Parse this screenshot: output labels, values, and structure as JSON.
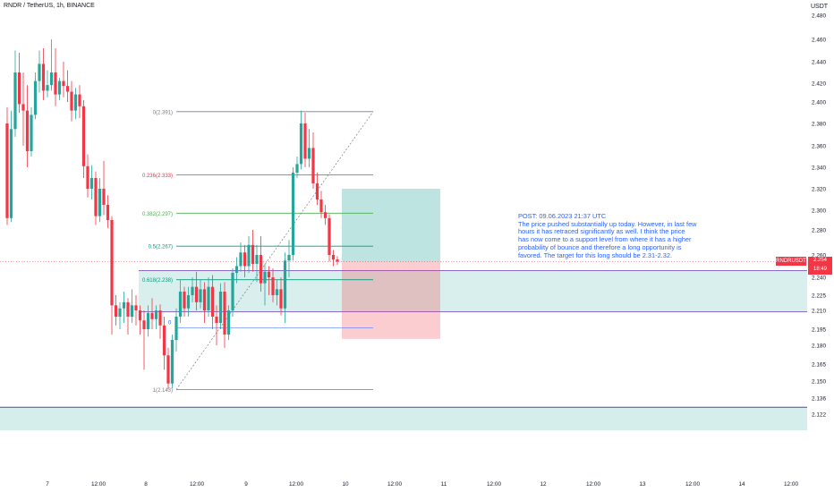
{
  "header": {
    "title": "RNDR / TetherUS, 1h, BINANCE",
    "unit": "USDT"
  },
  "note": {
    "heading": "POST: 09.06.2023 21:37 UTC",
    "body": "The price pushed substantially up today. However, in last few hours it has retraced significantly as well. I think the price has now come to a support level from where it has a higher probability of bounce and therefore a long opportunity is favored. The target for this long should be 2.31-2.32."
  },
  "price_marker": {
    "ticker": "RNDRUSDT",
    "price": "2.254",
    "countdown": "18:49"
  },
  "colors": {
    "up": "#26a69a",
    "down": "#f23645",
    "fib_line": "#787b86",
    "zone_fill": "#b2dfdb",
    "zone_border": "#673ab7",
    "note_text": "#2962ff"
  },
  "chart_data": {
    "type": "candlestick",
    "symbol": "RNDR / TetherUS",
    "timeframe": "1h",
    "exchange": "BINANCE",
    "y_axis": {
      "ticks": [
        "2.480",
        "2.460",
        "2.440",
        "2.420",
        "2.400",
        "2.380",
        "2.360",
        "2.340",
        "2.320",
        "2.300",
        "2.280",
        "2.260",
        "2.240",
        "2.225",
        "2.210",
        "2.195",
        "2.180",
        "2.165",
        "2.150",
        "2.136",
        "2.122"
      ],
      "tick_values": [
        2.48,
        2.46,
        2.44,
        2.42,
        2.4,
        2.38,
        2.36,
        2.34,
        2.32,
        2.3,
        2.28,
        2.26,
        2.24,
        2.225,
        2.21,
        2.195,
        2.18,
        2.165,
        2.15,
        2.136,
        2.122
      ]
    },
    "x_axis": {
      "ticks": [
        "7",
        "12:00",
        "8",
        "12:00",
        "9",
        "12:00",
        "10",
        "12:00",
        "11",
        "12:00",
        "12",
        "12:00",
        "13",
        "12:00",
        "14",
        "12:00"
      ]
    },
    "fib_levels": [
      {
        "label": "0(2.391)",
        "value": 2.391,
        "color": "#787b86"
      },
      {
        "label": "0.236(2.333)",
        "value": 2.333,
        "color": "#f23645"
      },
      {
        "label": "0.382(2.297)",
        "value": 2.297,
        "color": "#4caf50"
      },
      {
        "label": "0.5(2.267)",
        "value": 2.267,
        "color": "#089981"
      },
      {
        "label": "0.618(2.238)",
        "value": 2.238,
        "color": "#089981"
      },
      {
        "label": "1(2.143)",
        "value": 2.143,
        "color": "#787b86"
      }
    ],
    "fib_marker_label": "0",
    "position": {
      "side": "long",
      "entry": 2.254,
      "target_zone": [
        2.31,
        2.32
      ],
      "stop": 2.186
    },
    "support_zone": [
      2.209,
      2.246
    ],
    "lower_zone": [
      2.108,
      2.128
    ],
    "current_price": 2.254,
    "candles": [
      {
        "o": 2.38,
        "h": 2.395,
        "c": 2.292,
        "l": 2.285
      },
      {
        "o": 2.292,
        "h": 2.392,
        "c": 2.375,
        "l": 2.288
      },
      {
        "o": 2.375,
        "h": 2.45,
        "c": 2.43,
        "l": 2.368
      },
      {
        "o": 2.43,
        "h": 2.448,
        "c": 2.398,
        "l": 2.39
      },
      {
        "o": 2.398,
        "h": 2.43,
        "c": 2.392,
        "l": 2.36
      },
      {
        "o": 2.392,
        "h": 2.418,
        "c": 2.355,
        "l": 2.34
      },
      {
        "o": 2.355,
        "h": 2.395,
        "c": 2.388,
        "l": 2.35
      },
      {
        "o": 2.388,
        "h": 2.43,
        "c": 2.422,
        "l": 2.384
      },
      {
        "o": 2.422,
        "h": 2.45,
        "c": 2.438,
        "l": 2.41
      },
      {
        "o": 2.438,
        "h": 2.452,
        "c": 2.412,
        "l": 2.402
      },
      {
        "o": 2.412,
        "h": 2.432,
        "c": 2.418,
        "l": 2.405
      },
      {
        "o": 2.418,
        "h": 2.46,
        "c": 2.43,
        "l": 2.412
      },
      {
        "o": 2.43,
        "h": 2.452,
        "c": 2.408,
        "l": 2.396
      },
      {
        "o": 2.408,
        "h": 2.425,
        "c": 2.422,
        "l": 2.402
      },
      {
        "o": 2.422,
        "h": 2.44,
        "c": 2.417,
        "l": 2.405
      },
      {
        "o": 2.417,
        "h": 2.432,
        "c": 2.411,
        "l": 2.4
      },
      {
        "o": 2.411,
        "h": 2.422,
        "c": 2.392,
        "l": 2.382
      },
      {
        "o": 2.392,
        "h": 2.415,
        "c": 2.408,
        "l": 2.384
      },
      {
        "o": 2.408,
        "h": 2.418,
        "c": 2.396,
        "l": 2.385
      },
      {
        "o": 2.396,
        "h": 2.402,
        "c": 2.341,
        "l": 2.33
      },
      {
        "o": 2.341,
        "h": 2.352,
        "c": 2.32,
        "l": 2.312
      },
      {
        "o": 2.32,
        "h": 2.342,
        "c": 2.33,
        "l": 2.31
      },
      {
        "o": 2.33,
        "h": 2.336,
        "c": 2.294,
        "l": 2.285
      },
      {
        "o": 2.294,
        "h": 2.33,
        "c": 2.32,
        "l": 2.288
      },
      {
        "o": 2.32,
        "h": 2.346,
        "c": 2.305,
        "l": 2.295
      },
      {
        "o": 2.305,
        "h": 2.314,
        "c": 2.29,
        "l": 2.282
      },
      {
        "o": 2.29,
        "h": 2.294,
        "c": 2.215,
        "l": 2.19
      },
      {
        "o": 2.215,
        "h": 2.225,
        "c": 2.205,
        "l": 2.198
      },
      {
        "o": 2.205,
        "h": 2.218,
        "c": 2.212,
        "l": 2.195
      },
      {
        "o": 2.212,
        "h": 2.228,
        "c": 2.218,
        "l": 2.2
      },
      {
        "o": 2.218,
        "h": 2.222,
        "c": 2.205,
        "l": 2.19
      },
      {
        "o": 2.205,
        "h": 2.23,
        "c": 2.215,
        "l": 2.2
      },
      {
        "o": 2.215,
        "h": 2.225,
        "c": 2.21,
        "l": 2.198
      },
      {
        "o": 2.21,
        "h": 2.215,
        "c": 2.202,
        "l": 2.19
      },
      {
        "o": 2.202,
        "h": 2.21,
        "c": 2.195,
        "l": 2.16
      },
      {
        "o": 2.195,
        "h": 2.215,
        "c": 2.208,
        "l": 2.188
      },
      {
        "o": 2.208,
        "h": 2.222,
        "c": 2.203,
        "l": 2.195
      },
      {
        "o": 2.203,
        "h": 2.215,
        "c": 2.21,
        "l": 2.195
      },
      {
        "o": 2.21,
        "h": 2.216,
        "c": 2.198,
        "l": 2.186
      },
      {
        "o": 2.198,
        "h": 2.205,
        "c": 2.172,
        "l": 2.16
      },
      {
        "o": 2.172,
        "h": 2.178,
        "c": 2.148,
        "l": 2.143
      },
      {
        "o": 2.148,
        "h": 2.19,
        "c": 2.185,
        "l": 2.144
      },
      {
        "o": 2.185,
        "h": 2.212,
        "c": 2.205,
        "l": 2.175
      },
      {
        "o": 2.205,
        "h": 2.238,
        "c": 2.228,
        "l": 2.2
      },
      {
        "o": 2.228,
        "h": 2.232,
        "c": 2.212,
        "l": 2.205
      },
      {
        "o": 2.212,
        "h": 2.232,
        "c": 2.225,
        "l": 2.205
      },
      {
        "o": 2.225,
        "h": 2.24,
        "c": 2.232,
        "l": 2.218
      },
      {
        "o": 2.232,
        "h": 2.245,
        "c": 2.218,
        "l": 2.21
      },
      {
        "o": 2.218,
        "h": 2.238,
        "c": 2.23,
        "l": 2.212
      },
      {
        "o": 2.23,
        "h": 2.236,
        "c": 2.21,
        "l": 2.2
      },
      {
        "o": 2.21,
        "h": 2.24,
        "c": 2.232,
        "l": 2.205
      },
      {
        "o": 2.232,
        "h": 2.242,
        "c": 2.205,
        "l": 2.195
      },
      {
        "o": 2.205,
        "h": 2.215,
        "c": 2.2,
        "l": 2.18
      },
      {
        "o": 2.2,
        "h": 2.235,
        "c": 2.228,
        "l": 2.195
      },
      {
        "o": 2.228,
        "h": 2.236,
        "c": 2.19,
        "l": 2.178
      },
      {
        "o": 2.19,
        "h": 2.215,
        "c": 2.21,
        "l": 2.185
      },
      {
        "o": 2.21,
        "h": 2.248,
        "c": 2.244,
        "l": 2.205
      },
      {
        "o": 2.244,
        "h": 2.258,
        "c": 2.25,
        "l": 2.235
      },
      {
        "o": 2.25,
        "h": 2.27,
        "c": 2.262,
        "l": 2.245
      },
      {
        "o": 2.262,
        "h": 2.268,
        "c": 2.25,
        "l": 2.24
      },
      {
        "o": 2.25,
        "h": 2.275,
        "c": 2.268,
        "l": 2.244
      },
      {
        "o": 2.268,
        "h": 2.28,
        "c": 2.252,
        "l": 2.245
      },
      {
        "o": 2.252,
        "h": 2.268,
        "c": 2.26,
        "l": 2.236
      },
      {
        "o": 2.26,
        "h": 2.275,
        "c": 2.235,
        "l": 2.228
      },
      {
        "o": 2.235,
        "h": 2.252,
        "c": 2.245,
        "l": 2.215
      },
      {
        "o": 2.245,
        "h": 2.25,
        "c": 2.24,
        "l": 2.225
      },
      {
        "o": 2.24,
        "h": 2.248,
        "c": 2.225,
        "l": 2.218
      },
      {
        "o": 2.225,
        "h": 2.238,
        "c": 2.23,
        "l": 2.215
      },
      {
        "o": 2.23,
        "h": 2.24,
        "c": 2.212,
        "l": 2.206
      },
      {
        "o": 2.212,
        "h": 2.262,
        "c": 2.255,
        "l": 2.2
      },
      {
        "o": 2.255,
        "h": 2.272,
        "c": 2.26,
        "l": 2.24
      },
      {
        "o": 2.26,
        "h": 2.34,
        "c": 2.335,
        "l": 2.255
      },
      {
        "o": 2.335,
        "h": 2.35,
        "c": 2.343,
        "l": 2.33
      },
      {
        "o": 2.343,
        "h": 2.392,
        "c": 2.38,
        "l": 2.338
      },
      {
        "o": 2.38,
        "h": 2.39,
        "c": 2.348,
        "l": 2.34
      },
      {
        "o": 2.348,
        "h": 2.375,
        "c": 2.358,
        "l": 2.34
      },
      {
        "o": 2.358,
        "h": 2.372,
        "c": 2.325,
        "l": 2.32
      },
      {
        "o": 2.325,
        "h": 2.335,
        "c": 2.31,
        "l": 2.305
      },
      {
        "o": 2.31,
        "h": 2.318,
        "c": 2.298,
        "l": 2.292
      },
      {
        "o": 2.298,
        "h": 2.305,
        "c": 2.292,
        "l": 2.285
      },
      {
        "o": 2.292,
        "h": 2.296,
        "c": 2.26,
        "l": 2.254
      },
      {
        "o": 2.26,
        "h": 2.264,
        "c": 2.256,
        "l": 2.25
      },
      {
        "o": 2.256,
        "h": 2.259,
        "c": 2.254,
        "l": 2.251
      }
    ]
  }
}
